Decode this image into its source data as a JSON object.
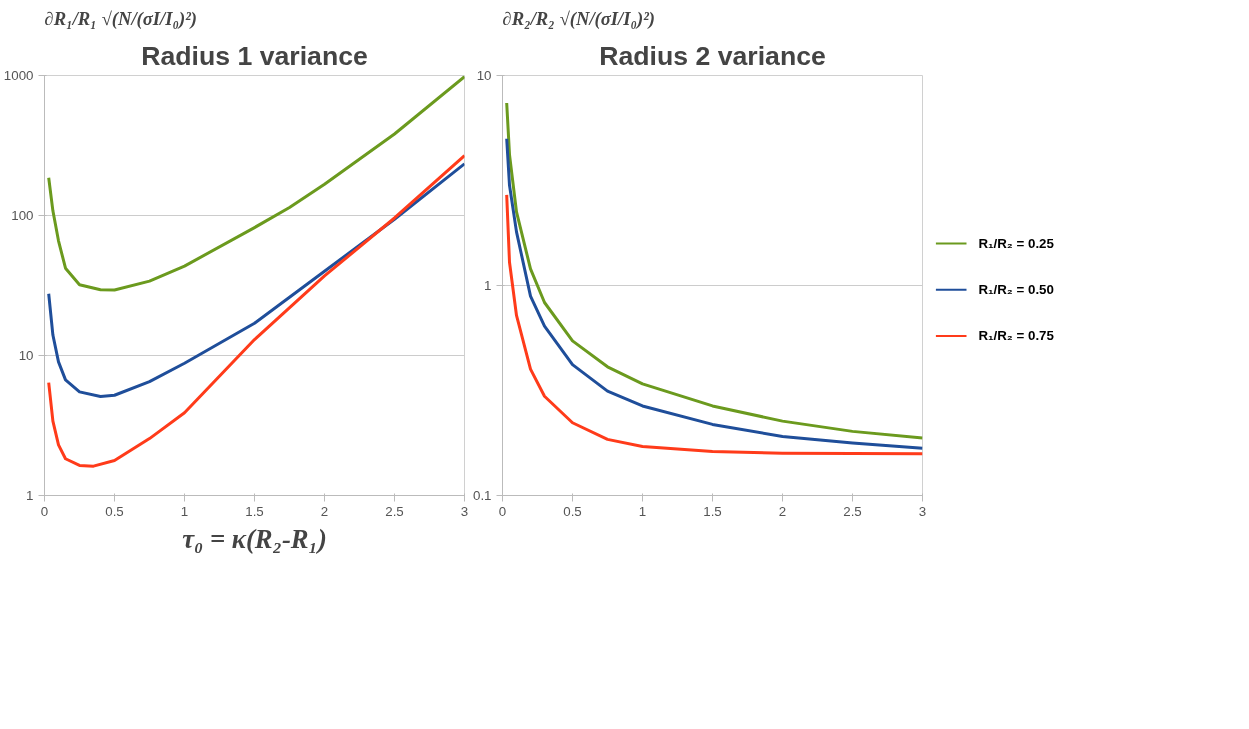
{
  "chart_data": [
    {
      "type": "line",
      "title": "Radius 1 variance",
      "ylabel": "∂R₁/R₁ √(N/(σI/I₀)²)",
      "xlabel": "τ₀ = κ(R₂-R₁)",
      "log": true,
      "grid": "y",
      "legend": false,
      "xlim": [
        0,
        3
      ],
      "xticks": [
        0,
        0.5,
        1,
        1.5,
        2,
        2.5,
        3
      ],
      "ylim": [
        1,
        1000
      ],
      "yticks": [
        1,
        10,
        100,
        1000
      ],
      "series": [
        {
          "color": "#6b9a1e",
          "x": [
            0.03,
            0.06,
            0.1,
            0.15,
            0.25,
            0.4,
            0.5,
            0.75,
            1.0,
            1.5,
            1.75,
            2.0,
            2.5,
            3.0
          ],
          "values": [
            186,
            108,
            66,
            42,
            32,
            29.5,
            29.4,
            34,
            43.5,
            82,
            114,
            167,
            382,
            980
          ]
        },
        {
          "color": "#1f4e9a",
          "x": [
            0.03,
            0.06,
            0.1,
            0.15,
            0.25,
            0.4,
            0.5,
            0.75,
            1.0,
            1.5,
            2.0,
            2.5,
            3.0
          ],
          "values": [
            27.6,
            14,
            9.0,
            6.7,
            5.5,
            5.1,
            5.2,
            6.5,
            8.8,
            17,
            40,
            94,
            234
          ]
        },
        {
          "color": "#ff3b1a",
          "x": [
            0.03,
            0.06,
            0.1,
            0.15,
            0.25,
            0.35,
            0.5,
            0.75,
            1.0,
            1.5,
            2.0,
            2.5,
            3.0
          ],
          "values": [
            6.4,
            3.4,
            2.3,
            1.83,
            1.64,
            1.62,
            1.78,
            2.55,
            3.9,
            13,
            37,
            96,
            268
          ]
        }
      ]
    },
    {
      "type": "line",
      "title": "Radius 2 variance",
      "ylabel": "∂R₂/R₂ √(N/(σI/I₀)²)",
      "log": true,
      "grid": "y",
      "legend": "right",
      "xlim": [
        0,
        3
      ],
      "xticks": [
        0,
        0.5,
        1,
        1.5,
        2,
        2.5,
        3
      ],
      "ylim": [
        0.1,
        10
      ],
      "yticks": [
        0.1,
        1,
        10
      ],
      "series": [
        {
          "name": "R₁/R₂ = 0.25",
          "color": "#6b9a1e",
          "x": [
            0.03,
            0.05,
            0.1,
            0.2,
            0.3,
            0.5,
            0.75,
            1.0,
            1.5,
            2.0,
            2.5,
            3.0
          ],
          "values": [
            7.4,
            4.2,
            2.24,
            1.2,
            0.83,
            0.545,
            0.41,
            0.34,
            0.267,
            0.226,
            0.202,
            0.188
          ]
        },
        {
          "name": "R₁/R₂ = 0.50",
          "color": "#1f4e9a",
          "x": [
            0.03,
            0.05,
            0.1,
            0.2,
            0.3,
            0.5,
            0.75,
            1.0,
            1.5,
            2.0,
            2.5,
            3.0
          ],
          "values": [
            5.0,
            3.0,
            1.8,
            0.89,
            0.64,
            0.42,
            0.314,
            0.267,
            0.218,
            0.191,
            0.178,
            0.168
          ]
        },
        {
          "name": "R₁/R₂ = 0.75",
          "color": "#ff3b1a",
          "x": [
            0.03,
            0.05,
            0.1,
            0.2,
            0.3,
            0.5,
            0.75,
            1.0,
            1.5,
            2.0,
            3.0
          ],
          "values": [
            2.7,
            1.29,
            0.72,
            0.4,
            0.297,
            0.222,
            0.185,
            0.171,
            0.162,
            0.159,
            0.158
          ]
        }
      ]
    }
  ]
}
